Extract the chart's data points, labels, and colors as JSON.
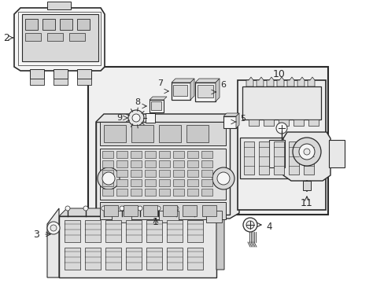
{
  "bg_color": "#ffffff",
  "lc": "#2a2a2a",
  "fc_light": "#f5f5f5",
  "fc_gray": "#e8e8e8",
  "fc_mid": "#d8d8d8",
  "fc_dark": "#c8c8c8",
  "fig_width": 4.89,
  "fig_height": 3.6,
  "dpi": 100,
  "xlim": [
    0,
    489
  ],
  "ylim": [
    0,
    360
  ]
}
